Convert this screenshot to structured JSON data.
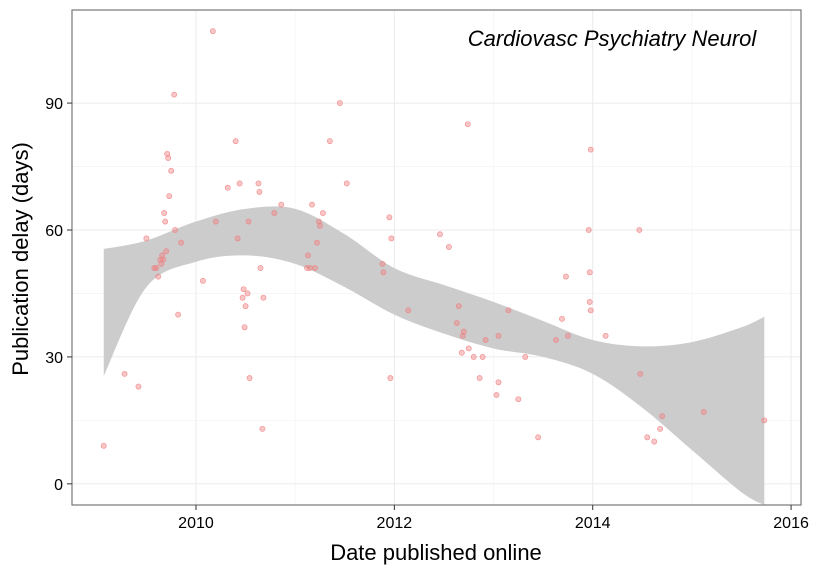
{
  "chart_data": {
    "type": "scatter",
    "annotation": "Cardiovasc Psychiatry Neurol",
    "xlabel": "Date published online",
    "ylabel": "Publication delay (days)",
    "x_ticks": [
      2010,
      2012,
      2014,
      2016
    ],
    "y_ticks": [
      0,
      30,
      60,
      90
    ],
    "xlim": [
      2008.75,
      2016.1
    ],
    "ylim": [
      -5,
      112
    ],
    "grid": true,
    "point_color": "#f08080",
    "band_color": "#cccccc",
    "points": [
      {
        "x": 2009.07,
        "y": 9
      },
      {
        "x": 2009.28,
        "y": 26
      },
      {
        "x": 2009.42,
        "y": 23
      },
      {
        "x": 2009.5,
        "y": 58
      },
      {
        "x": 2009.58,
        "y": 51
      },
      {
        "x": 2009.6,
        "y": 51
      },
      {
        "x": 2009.62,
        "y": 49
      },
      {
        "x": 2009.64,
        "y": 53
      },
      {
        "x": 2009.65,
        "y": 52
      },
      {
        "x": 2009.66,
        "y": 54
      },
      {
        "x": 2009.67,
        "y": 53
      },
      {
        "x": 2009.68,
        "y": 64
      },
      {
        "x": 2009.69,
        "y": 62
      },
      {
        "x": 2009.7,
        "y": 55
      },
      {
        "x": 2009.71,
        "y": 78
      },
      {
        "x": 2009.72,
        "y": 77
      },
      {
        "x": 2009.73,
        "y": 68
      },
      {
        "x": 2009.75,
        "y": 74
      },
      {
        "x": 2009.78,
        "y": 92
      },
      {
        "x": 2009.79,
        "y": 60
      },
      {
        "x": 2009.82,
        "y": 40
      },
      {
        "x": 2009.85,
        "y": 57
      },
      {
        "x": 2010.07,
        "y": 48
      },
      {
        "x": 2010.17,
        "y": 107
      },
      {
        "x": 2010.2,
        "y": 62
      },
      {
        "x": 2010.32,
        "y": 70
      },
      {
        "x": 2010.4,
        "y": 81
      },
      {
        "x": 2010.42,
        "y": 58
      },
      {
        "x": 2010.44,
        "y": 71
      },
      {
        "x": 2010.47,
        "y": 44
      },
      {
        "x": 2010.48,
        "y": 46
      },
      {
        "x": 2010.49,
        "y": 37
      },
      {
        "x": 2010.5,
        "y": 42
      },
      {
        "x": 2010.52,
        "y": 45
      },
      {
        "x": 2010.53,
        "y": 62
      },
      {
        "x": 2010.54,
        "y": 25
      },
      {
        "x": 2010.63,
        "y": 71
      },
      {
        "x": 2010.64,
        "y": 69
      },
      {
        "x": 2010.65,
        "y": 51
      },
      {
        "x": 2010.67,
        "y": 13
      },
      {
        "x": 2010.68,
        "y": 44
      },
      {
        "x": 2010.79,
        "y": 64
      },
      {
        "x": 2010.86,
        "y": 66
      },
      {
        "x": 2011.12,
        "y": 51
      },
      {
        "x": 2011.13,
        "y": 54
      },
      {
        "x": 2011.15,
        "y": 51
      },
      {
        "x": 2011.17,
        "y": 66
      },
      {
        "x": 2011.2,
        "y": 51
      },
      {
        "x": 2011.22,
        "y": 57
      },
      {
        "x": 2011.24,
        "y": 62
      },
      {
        "x": 2011.25,
        "y": 61
      },
      {
        "x": 2011.28,
        "y": 64
      },
      {
        "x": 2011.35,
        "y": 81
      },
      {
        "x": 2011.45,
        "y": 90
      },
      {
        "x": 2011.52,
        "y": 71
      },
      {
        "x": 2011.88,
        "y": 52
      },
      {
        "x": 2011.89,
        "y": 50
      },
      {
        "x": 2011.95,
        "y": 63
      },
      {
        "x": 2011.96,
        "y": 25
      },
      {
        "x": 2011.97,
        "y": 58
      },
      {
        "x": 2012.14,
        "y": 41
      },
      {
        "x": 2012.46,
        "y": 59
      },
      {
        "x": 2012.55,
        "y": 56
      },
      {
        "x": 2012.63,
        "y": 38
      },
      {
        "x": 2012.65,
        "y": 42
      },
      {
        "x": 2012.68,
        "y": 31
      },
      {
        "x": 2012.69,
        "y": 35
      },
      {
        "x": 2012.7,
        "y": 36
      },
      {
        "x": 2012.74,
        "y": 85
      },
      {
        "x": 2012.75,
        "y": 32
      },
      {
        "x": 2012.8,
        "y": 30
      },
      {
        "x": 2012.86,
        "y": 25
      },
      {
        "x": 2012.89,
        "y": 30
      },
      {
        "x": 2012.92,
        "y": 34
      },
      {
        "x": 2013.03,
        "y": 21
      },
      {
        "x": 2013.05,
        "y": 35
      },
      {
        "x": 2013.05,
        "y": 24
      },
      {
        "x": 2013.15,
        "y": 41
      },
      {
        "x": 2013.25,
        "y": 20
      },
      {
        "x": 2013.32,
        "y": 30
      },
      {
        "x": 2013.45,
        "y": 11
      },
      {
        "x": 2013.63,
        "y": 34
      },
      {
        "x": 2013.69,
        "y": 39
      },
      {
        "x": 2013.73,
        "y": 49
      },
      {
        "x": 2013.75,
        "y": 35
      },
      {
        "x": 2013.96,
        "y": 60
      },
      {
        "x": 2013.97,
        "y": 50
      },
      {
        "x": 2013.97,
        "y": 43
      },
      {
        "x": 2013.98,
        "y": 41
      },
      {
        "x": 2013.98,
        "y": 79
      },
      {
        "x": 2014.13,
        "y": 35
      },
      {
        "x": 2014.47,
        "y": 60
      },
      {
        "x": 2014.48,
        "y": 26
      },
      {
        "x": 2014.55,
        "y": 11
      },
      {
        "x": 2014.62,
        "y": 10
      },
      {
        "x": 2014.68,
        "y": 13
      },
      {
        "x": 2014.7,
        "y": 16
      },
      {
        "x": 2015.12,
        "y": 17
      },
      {
        "x": 2015.73,
        "y": 15
      }
    ],
    "smooth_band": {
      "x": [
        2009.07,
        2009.5,
        2010.0,
        2010.5,
        2011.0,
        2011.5,
        2012.0,
        2012.5,
        2013.0,
        2013.5,
        2014.0,
        2014.5,
        2015.0,
        2015.5,
        2015.73
      ],
      "upper": [
        55.5,
        57.5,
        62,
        65,
        65,
        59,
        51,
        47,
        43,
        38.5,
        34,
        32.5,
        33.5,
        37,
        39.5
      ],
      "lower": [
        25.5,
        46.5,
        52.5,
        54,
        52,
        46.5,
        40,
        35.5,
        32,
        30,
        26,
        18,
        8,
        -2,
        -5
      ]
    }
  }
}
